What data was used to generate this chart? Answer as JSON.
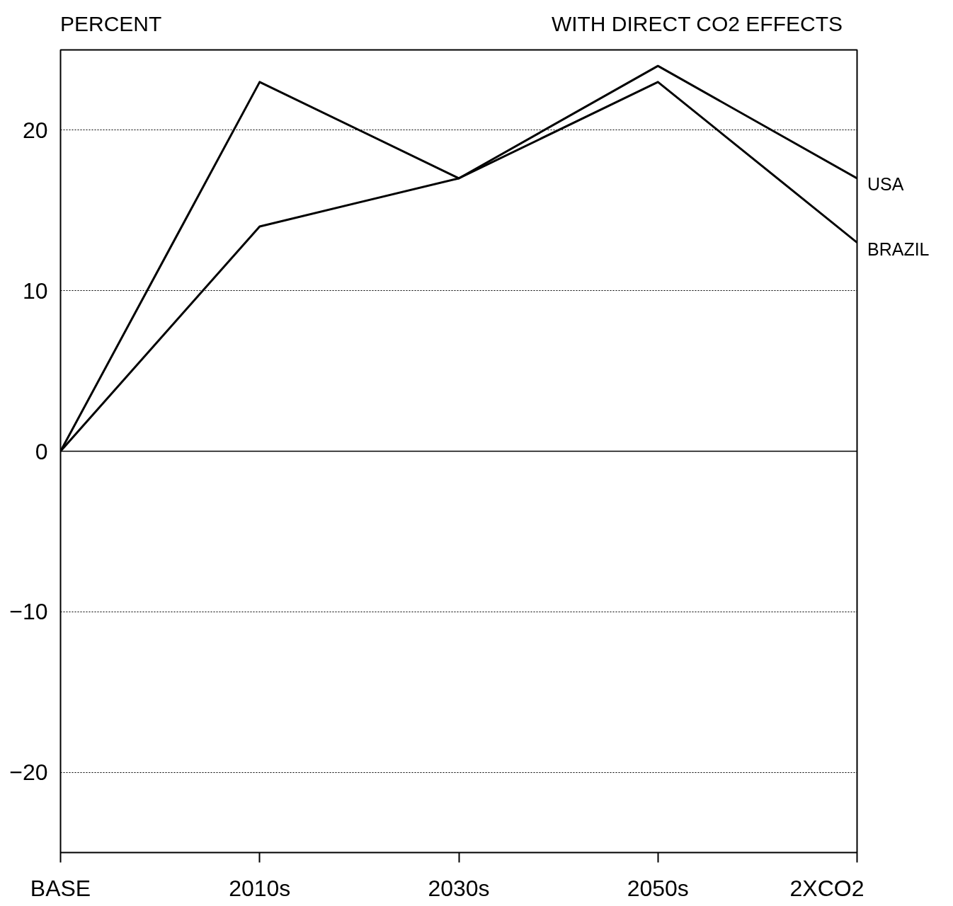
{
  "chart_data": {
    "type": "line",
    "title": "WITH DIRECT CO2 EFFECTS",
    "ylabel": "PERCENT",
    "categories": [
      "BASE",
      "2010s",
      "2030s",
      "2050s",
      "2XCO2"
    ],
    "series": [
      {
        "name": "USA",
        "color": "#000000",
        "values": [
          0,
          23,
          17,
          24,
          17
        ]
      },
      {
        "name": "BRAZIL",
        "color": "#000000",
        "values": [
          0,
          14,
          17,
          23,
          13
        ]
      }
    ],
    "ylim": [
      -25,
      25
    ],
    "yticks": [
      -20,
      -10,
      0,
      10,
      20
    ],
    "grid": "y",
    "legend": false,
    "marker": "none",
    "line_style": "solid",
    "ref_lines": [
      {
        "axis": "y",
        "value": 0,
        "line_style": "solid",
        "color": "#000000"
      }
    ]
  }
}
